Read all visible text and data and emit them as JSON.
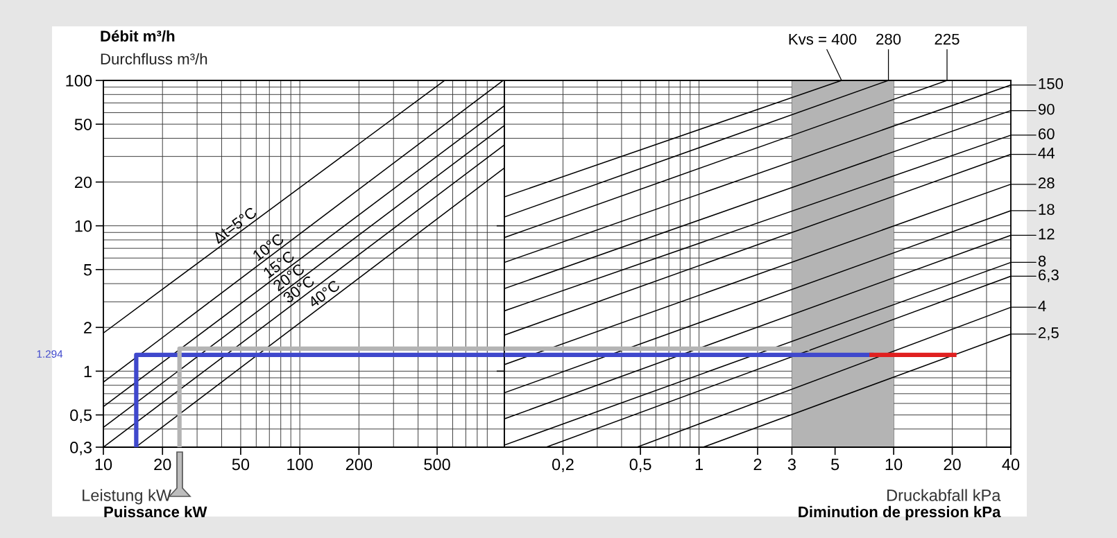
{
  "chart_data": [
    {
      "type": "line",
      "title": "Débit m³/h",
      "subtitle": "Durchfluss m³/h",
      "xlabel": "Leistung kW",
      "log": "xy",
      "xlim": [
        10,
        1100
      ],
      "ylim": [
        0.3,
        100
      ],
      "xticks": [
        10,
        20,
        50,
        100,
        200,
        500
      ],
      "yticks": [
        {
          "value": 0.3,
          "label": "0,3"
        },
        {
          "value": 0.5,
          "label": "0,5"
        },
        1,
        2,
        5,
        10,
        20,
        50,
        100
      ],
      "grid": true,
      "annotations": [
        "Puissance kW",
        "1.294"
      ],
      "series": [
        {
          "name": "Δt=5°C",
          "color": "#000000",
          "x": [
            10,
            546
          ],
          "values": [
            1.83,
            100
          ]
        },
        {
          "name": "10°C",
          "color": "#000000",
          "x": [
            10,
            1084
          ],
          "values": [
            0.84,
            100
          ]
        },
        {
          "name": "15°C",
          "color": "#000000",
          "x": [
            10,
            1100
          ],
          "values": [
            0.57,
            67
          ]
        },
        {
          "name": "20°C",
          "color": "#000000",
          "x": [
            10,
            1100
          ],
          "values": [
            0.41,
            49
          ]
        },
        {
          "name": "30°C",
          "color": "#000000",
          "x": [
            10,
            1100
          ],
          "values": [
            0.3,
            36
          ]
        },
        {
          "name": "40°C",
          "color": "#000000",
          "x": [
            14.6,
            1100
          ],
          "values": [
            0.3,
            25
          ]
        },
        {
          "color": "#3f48cc",
          "x": [
            14.7,
            14.7,
            1100
          ],
          "values": [
            0.3,
            1.294,
            1.294
          ]
        },
        {
          "color": "#b4b4b4",
          "x": [
            24.4,
            24.4,
            1100
          ],
          "values": [
            0.3,
            1.43,
            1.43
          ]
        }
      ]
    },
    {
      "type": "line",
      "xlabel": "Druckabfall kPa",
      "log": "xy",
      "xlim": [
        0.1,
        40
      ],
      "ylim": [
        0.3,
        100
      ],
      "xticks": [
        {
          "value": 0.2,
          "label": "0,2"
        },
        {
          "value": 0.5,
          "label": "0,5"
        },
        1,
        2,
        3,
        5,
        10,
        20,
        40
      ],
      "tick_labels": "x",
      "grid": true,
      "legend": "right",
      "bands": [
        {
          "axis": "x",
          "from": 3,
          "to": 10,
          "color": "#b4b4b4"
        }
      ],
      "annotations": [
        "Diminution de pression kPa"
      ],
      "series": [
        {
          "name": "Kvs = 400",
          "color": "#000000",
          "x": [
            0.1,
            5.4
          ],
          "values": [
            15.8,
            100
          ]
        },
        {
          "name": "280",
          "color": "#000000",
          "x": [
            0.1,
            9.4
          ],
          "values": [
            11.5,
            100
          ]
        },
        {
          "name": "225",
          "color": "#000000",
          "x": [
            0.1,
            18.8
          ],
          "values": [
            8.3,
            100
          ]
        },
        {
          "name": "150",
          "color": "#000000",
          "x": [
            0.1,
            40
          ],
          "values": [
            5.6,
            93
          ]
        },
        {
          "name": "90",
          "color": "#000000",
          "x": [
            0.1,
            40
          ],
          "values": [
            3.7,
            62
          ]
        },
        {
          "name": "60",
          "color": "#000000",
          "x": [
            0.1,
            40
          ],
          "values": [
            2.6,
            42
          ]
        },
        {
          "name": "44",
          "color": "#000000",
          "x": [
            0.1,
            40
          ],
          "values": [
            1.77,
            31
          ]
        },
        {
          "name": "28",
          "color": "#000000",
          "x": [
            0.1,
            40
          ],
          "values": [
            1.11,
            19.3
          ]
        },
        {
          "name": "18",
          "color": "#000000",
          "x": [
            0.1,
            40
          ],
          "values": [
            0.71,
            12.7
          ]
        },
        {
          "name": "12",
          "color": "#000000",
          "x": [
            0.1,
            40
          ],
          "values": [
            0.47,
            8.6
          ]
        },
        {
          "name": "8",
          "color": "#000000",
          "x": [
            0.1,
            40
          ],
          "values": [
            0.31,
            5.6
          ]
        },
        {
          "name": "6,3",
          "color": "#000000",
          "x": [
            0.164,
            40
          ],
          "values": [
            0.3,
            4.5
          ]
        },
        {
          "name": "4",
          "color": "#000000",
          "x": [
            0.48,
            40
          ],
          "values": [
            0.3,
            2.75
          ]
        },
        {
          "name": "2,5",
          "color": "#000000",
          "x": [
            1.05,
            40
          ],
          "values": [
            0.3,
            1.8
          ]
        },
        {
          "color": "#b4b4b4",
          "x": [
            0.1,
            3.6
          ],
          "values": [
            1.43,
            1.43
          ]
        },
        {
          "color": "#3f48cc",
          "x": [
            0.1,
            7.7
          ],
          "values": [
            1.294,
            1.294
          ]
        },
        {
          "color": "#e02020",
          "x": [
            7.7,
            20.5
          ],
          "values": [
            1.294,
            1.294
          ]
        }
      ]
    }
  ]
}
